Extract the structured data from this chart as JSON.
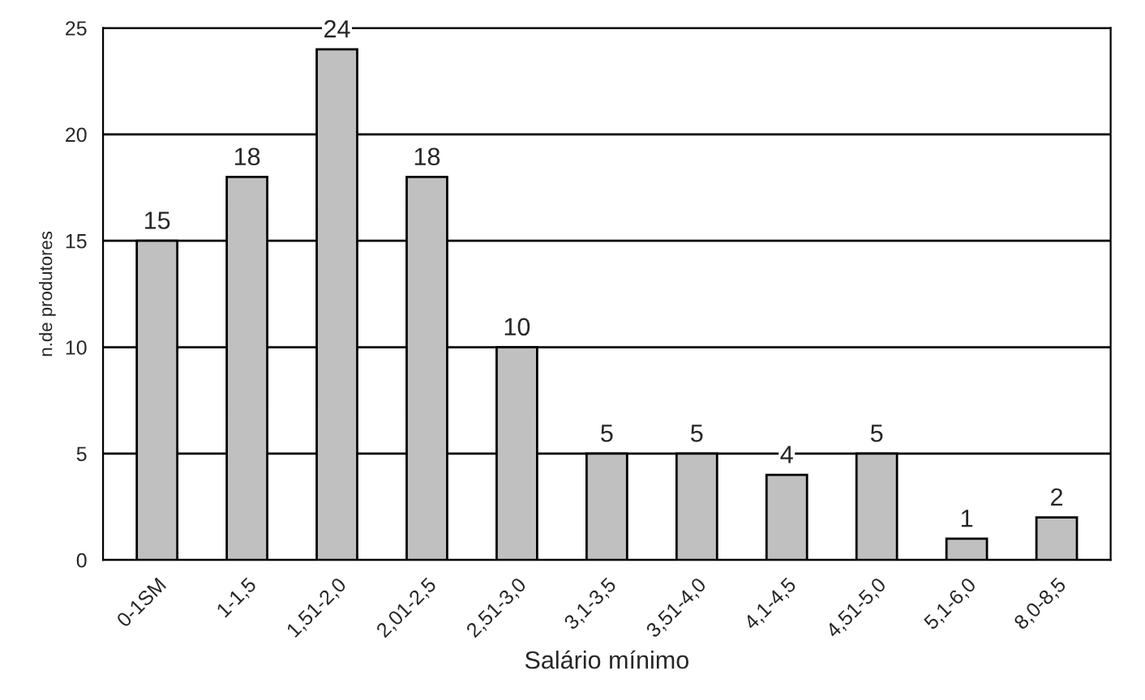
{
  "chart_data": {
    "type": "bar",
    "xlabel": "Salário mínimo",
    "ylabel": "n.de produtores",
    "categories": [
      "0-1SM",
      "1-1,5",
      "1,51-2,0",
      "2,01-2,5",
      "2,51-3,0",
      "3,1-3,5",
      "3,51-4,0",
      "4,1-4,5",
      "4,51-5,0",
      "5,1-6,0",
      "8,0-8,5"
    ],
    "values": [
      15,
      18,
      24,
      18,
      10,
      5,
      5,
      4,
      5,
      1,
      2
    ],
    "color": "#c0c0c0",
    "ylim": [
      0,
      25
    ],
    "yticks": [
      0,
      5,
      10,
      15,
      20,
      25
    ],
    "grid": "y",
    "data_labels": true
  }
}
